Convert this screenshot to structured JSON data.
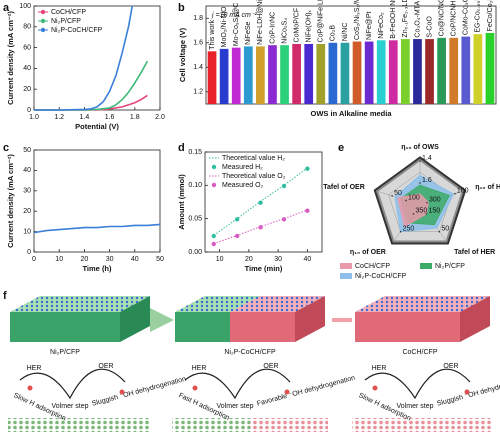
{
  "chart_data": [
    {
      "type": "line",
      "panel": "a",
      "xlabel": "Potential (V)",
      "ylabel": "Current density (mA cm⁻²)",
      "xlim": [
        1.0,
        2.0
      ],
      "xticks": [
        {
          "value": 1.0,
          "label": "1.0"
        },
        1.2,
        1.4,
        1.6,
        1.8,
        {
          "value": 2.0,
          "label": "2.0"
        }
      ],
      "ylim": [
        0,
        100
      ],
      "yticks": [
        0,
        20,
        40,
        60,
        80,
        100
      ],
      "legend": "upper left",
      "series": [
        {
          "name": "CoCH/CFP",
          "color": "#e8457a",
          "x": [
            1.0,
            1.2,
            1.4,
            1.5,
            1.6,
            1.7,
            1.8,
            1.85,
            1.9
          ],
          "values": [
            0,
            0,
            0,
            0,
            1,
            3,
            7,
            10,
            14
          ]
        },
        {
          "name": "Ni₂P/CFP",
          "color": "#3dbb78",
          "x": [
            1.0,
            1.2,
            1.4,
            1.5,
            1.6,
            1.65,
            1.7,
            1.75,
            1.8,
            1.85,
            1.9
          ],
          "values": [
            0,
            0,
            0,
            0.5,
            2,
            5,
            10,
            17,
            26,
            36,
            47
          ]
        },
        {
          "name": "Ni₂P-CoCH/CFP",
          "color": "#3a7fd8",
          "x": [
            1.0,
            1.2,
            1.4,
            1.45,
            1.5,
            1.55,
            1.6,
            1.65,
            1.7,
            1.75,
            1.78
          ],
          "values": [
            0,
            0,
            0.5,
            1,
            3,
            8,
            18,
            33,
            55,
            80,
            100
          ]
        }
      ]
    },
    {
      "type": "bar",
      "panel": "b",
      "annotation": "j =10 mA cm⁻²",
      "xlabel": "OWS in Alkaline media",
      "ylabel": "Cell voltage (V)",
      "ylim": [
        1.1,
        1.9
      ],
      "yticks": [
        1.2,
        1.4,
        1.6,
        1.8
      ],
      "categories": [
        "This work",
        "MoO₂/Ni-NiO",
        "Mo-Co₉S₈@C",
        "NiFeSe",
        "NiFe-LDH@NiCoP",
        "CoP-InNC",
        "NiCo₂S₄",
        "CoMoP/CF",
        "NiFe(OH)ₓ",
        "CoP@NiFe LDH",
        "Co₂B",
        "Ni/NC",
        "CoS₂/Ni₃S₂/MoS₂/NSG",
        "NiFe@Pt",
        "NiFeCo₂",
        "B-FeOOH Nt/NiF",
        "Zn₀.₁Fe₂.₃LDH",
        "Co₃O₄-MTA",
        "S-CoO",
        "Co@NC/NGC-800",
        "CoP/NCNHP",
        "CoMo-Co₉C-NCNTs",
        "EG-Co₀.₈₅Se/NiFe LDH",
        "FeCo/Co₂P@NC"
      ],
      "values": [
        1.53,
        1.55,
        1.56,
        1.57,
        1.57,
        1.58,
        1.58,
        1.59,
        1.59,
        1.59,
        1.6,
        1.6,
        1.61,
        1.61,
        1.62,
        1.62,
        1.63,
        1.63,
        1.63,
        1.64,
        1.64,
        1.65,
        1.67,
        1.68
      ],
      "colors": [
        "#e8202a",
        "#2a3bd0",
        "#c02ad0",
        "#2a9ad0",
        "#d0a02a",
        "#8a2ad0",
        "#2ad07a",
        "#d02a6a",
        "#4a2ad0",
        "#a0a02a",
        "#2a6ad0",
        "#2aa0a0",
        "#d05a2a",
        "#6a2ad0",
        "#2ad0d0",
        "#d02aa0",
        "#7ad02a",
        "#2a2a9a",
        "#9a2a2a",
        "#2a9a5a",
        "#d07a2a",
        "#5a5ad0",
        "#d0d02a",
        "#2ad02a"
      ]
    },
    {
      "type": "line",
      "panel": "c",
      "xlabel": "Time (h)",
      "ylabel": "Current density (mA cm⁻²)",
      "xlim": [
        0,
        50
      ],
      "xticks": [
        0,
        10,
        20,
        30,
        40,
        50
      ],
      "ylim": [
        0,
        50
      ],
      "yticks": [
        0,
        10,
        20,
        30,
        40,
        50
      ],
      "color": "#3a7fd8",
      "x": [
        0,
        5,
        10,
        15,
        20,
        25,
        30,
        35,
        40,
        45,
        50
      ],
      "values": [
        9.5,
        10.5,
        11,
        11.5,
        12,
        12,
        12.5,
        12.5,
        13,
        13,
        13.5
      ]
    },
    {
      "type": "line",
      "panel": "d",
      "xlabel": "Time (min)",
      "ylabel": "Amount (mmol)",
      "xlim": [
        5,
        45
      ],
      "xticks": [
        10,
        20,
        30,
        40
      ],
      "ylim": [
        0,
        0.15
      ],
      "yticks": [
        {
          "value": 0,
          "label": "0.00"
        },
        {
          "value": 0.05,
          "label": "0.05"
        },
        {
          "value": 0.1,
          "label": "0.10"
        },
        {
          "value": 0.15,
          "label": "0.15"
        }
      ],
      "legend": "upper left",
      "series": [
        {
          "name": "Theoretical value H₂",
          "color": "#2fbfa0",
          "mode": "dotted",
          "x": [
            8,
            16,
            24,
            32,
            40
          ],
          "values": [
            0.025,
            0.05,
            0.076,
            0.1,
            0.126
          ]
        },
        {
          "name": "Measured H₂",
          "color": "#2fbfa0",
          "mode": "markers",
          "x": [
            8,
            16,
            24,
            32,
            40
          ],
          "values": [
            0.024,
            0.049,
            0.074,
            0.099,
            0.125
          ]
        },
        {
          "name": "Theoretical value O₂",
          "color": "#d95ac0",
          "mode": "dotted",
          "x": [
            8,
            16,
            24,
            32,
            40
          ],
          "values": [
            0.0125,
            0.025,
            0.038,
            0.05,
            0.063
          ]
        },
        {
          "name": "Measured O₂",
          "color": "#d95ac0",
          "mode": "markers",
          "x": [
            8,
            16,
            24,
            32,
            40
          ],
          "values": [
            0.012,
            0.024,
            0.037,
            0.049,
            0.062
          ]
        }
      ]
    },
    {
      "type": "radar",
      "panel": "e",
      "axes": [
        {
          "name": "η₁₀ of OWS",
          "lim": [
            1.8,
            1.4
          ],
          "ticks": [
            1.4,
            1.6
          ]
        },
        {
          "name": "η₁₀ of HER",
          "lim": [
            350,
            50
          ],
          "ticks": [
            100,
            300
          ]
        },
        {
          "name": "Tafel of HER",
          "lim": [
            200,
            0
          ],
          "ticks": [
            50,
            150
          ]
        },
        {
          "name": "η₁₀ of OER",
          "lim": [
            400,
            200
          ],
          "ticks": [
            250,
            350
          ]
        },
        {
          "name": "Tafel of OER",
          "lim": [
            150,
            0
          ],
          "ticks": [
            50,
            100
          ]
        }
      ],
      "series": [
        {
          "name": "CoCH/CFP",
          "color": "#e89aaa",
          "values": [
            1.7,
            290,
            150,
            280,
            70
          ]
        },
        {
          "name": "Ni₂P/CFP",
          "color": "#3dab68",
          "values": [
            1.62,
            140,
            90,
            300,
            80
          ]
        },
        {
          "name": "Ni₂P-CoCH/CFP",
          "color": "#8cc0ea",
          "values": [
            1.53,
            110,
            70,
            250,
            60
          ]
        }
      ]
    }
  ],
  "diagram": {
    "panel": "f",
    "materials": [
      "Ni₂P/CFP",
      "Ni₂P-CoCH/CFP",
      "CoCH/CFP"
    ],
    "mechanisms": [
      {
        "her": "HER",
        "oer": "OER",
        "step": "Volmer step",
        "her_note": "Slow H adsorption",
        "oer_note": "Sluggish ⁻OH dehydrogenation"
      },
      {
        "her": "HER",
        "oer": "OER",
        "step": "Volmer step",
        "her_note": "Fast H adsorption",
        "oer_note": "Favorable ⁻OH dehydrogenation"
      },
      {
        "her": "HER",
        "oer": "OER",
        "step": "Volmer step",
        "her_note": "Slow H adsorption",
        "oer_note": "Sluggish ⁻OH dehydrogenation"
      }
    ]
  }
}
